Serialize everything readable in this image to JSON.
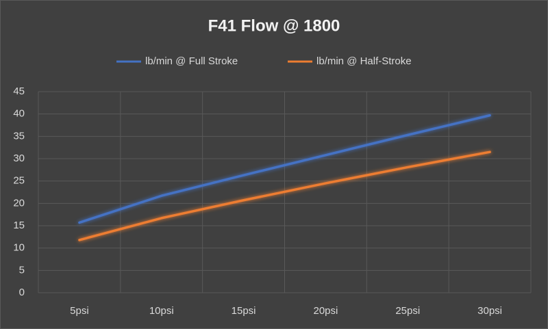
{
  "chart_data": {
    "type": "line",
    "title": "F41 Flow @ 1800",
    "categories": [
      "5psi",
      "10psi",
      "15psi",
      "20psi",
      "25psi",
      "30psi"
    ],
    "series": [
      {
        "name": "lb/min @ Full Stroke",
        "color": "#4472c4",
        "values": [
          15.7,
          21.7,
          26.3,
          30.8,
          35.3,
          39.7
        ]
      },
      {
        "name": "lb/min @ Half-Stroke",
        "color": "#ed7d31",
        "values": [
          11.8,
          16.7,
          20.7,
          24.5,
          28.1,
          31.5
        ]
      }
    ],
    "ylim": [
      0,
      45
    ],
    "yticks": [
      0,
      5,
      10,
      15,
      20,
      25,
      30,
      35,
      40,
      45
    ],
    "grid": true,
    "legend": "top"
  }
}
